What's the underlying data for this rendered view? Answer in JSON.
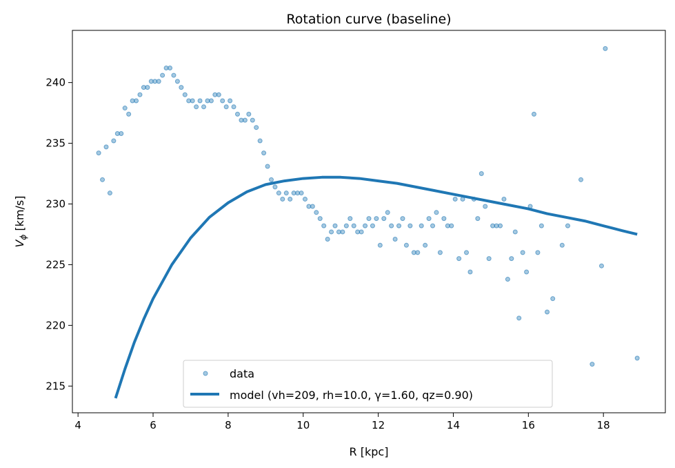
{
  "chart_data": {
    "type": "scatter",
    "title": "Rotation curve (baseline)",
    "xlabel": "R [kpc]",
    "ylabel_main": "V",
    "ylabel_sub": "ϕ",
    "ylabel_unit": " [km/s]",
    "xlim": [
      3.85,
      19.65
    ],
    "ylim": [
      212.8,
      244.3
    ],
    "xticks": [
      4,
      6,
      8,
      10,
      12,
      14,
      16,
      18
    ],
    "yticks": [
      215,
      220,
      225,
      230,
      235,
      240
    ],
    "grid": false,
    "legend_position": "lower center",
    "series": [
      {
        "name": "data",
        "kind": "points",
        "color": "#1f77b4",
        "x": [
          4.55,
          4.65,
          4.75,
          4.85,
          4.95,
          5.05,
          5.15,
          5.25,
          5.35,
          5.45,
          5.55,
          5.65,
          5.75,
          5.85,
          5.95,
          6.05,
          6.15,
          6.25,
          6.35,
          6.45,
          6.55,
          6.65,
          6.75,
          6.85,
          6.95,
          7.05,
          7.15,
          7.25,
          7.35,
          7.45,
          7.55,
          7.65,
          7.75,
          7.85,
          7.95,
          8.05,
          8.15,
          8.25,
          8.35,
          8.45,
          8.55,
          8.65,
          8.75,
          8.85,
          8.95,
          9.05,
          9.15,
          9.25,
          9.35,
          9.45,
          9.55,
          9.65,
          9.75,
          9.85,
          9.95,
          10.05,
          10.15,
          10.25,
          10.35,
          10.45,
          10.55,
          10.65,
          10.75,
          10.85,
          10.95,
          11.05,
          11.15,
          11.25,
          11.35,
          11.45,
          11.55,
          11.65,
          11.75,
          11.85,
          11.95,
          12.05,
          12.15,
          12.25,
          12.35,
          12.45,
          12.55,
          12.65,
          12.75,
          12.85,
          12.95,
          13.05,
          13.15,
          13.25,
          13.35,
          13.45,
          13.55,
          13.65,
          13.75,
          13.85,
          13.95,
          14.05,
          14.15,
          14.25,
          14.35,
          14.45,
          14.55,
          14.65,
          14.75,
          14.85,
          14.95,
          15.05,
          15.15,
          15.25,
          15.35,
          15.45,
          15.55,
          15.65,
          15.75,
          15.85,
          15.95,
          16.05,
          16.15,
          16.25,
          16.35,
          16.5,
          16.65,
          16.9,
          17.05,
          17.4,
          17.7,
          17.95,
          18.05,
          18.9
        ],
        "y": [
          234.2,
          232.0,
          234.7,
          230.9,
          235.2,
          235.8,
          235.8,
          237.9,
          237.4,
          238.5,
          238.5,
          239.0,
          239.6,
          239.6,
          240.1,
          240.1,
          240.1,
          240.6,
          241.2,
          241.2,
          240.6,
          240.1,
          239.6,
          239.0,
          238.5,
          238.5,
          238.0,
          238.5,
          238.0,
          238.5,
          238.5,
          239.0,
          239.0,
          238.5,
          238.0,
          238.5,
          238.0,
          237.4,
          236.9,
          236.9,
          237.4,
          236.9,
          236.3,
          235.2,
          234.2,
          233.1,
          232.0,
          231.4,
          230.9,
          230.4,
          230.9,
          230.4,
          230.9,
          230.9,
          230.9,
          230.4,
          229.8,
          229.8,
          229.3,
          228.8,
          228.2,
          227.1,
          227.7,
          228.2,
          227.7,
          227.7,
          228.2,
          228.8,
          228.2,
          227.7,
          227.7,
          228.2,
          228.8,
          228.2,
          228.8,
          226.6,
          228.8,
          229.3,
          228.2,
          227.1,
          228.2,
          228.8,
          226.6,
          228.2,
          226.0,
          226.0,
          228.2,
          226.6,
          228.8,
          228.2,
          229.3,
          226.0,
          228.8,
          228.2,
          228.2,
          230.4,
          225.5,
          230.4,
          226.0,
          224.4,
          230.4,
          228.8,
          232.5,
          229.8,
          225.5,
          228.2,
          228.2,
          228.2,
          230.4,
          223.8,
          225.5,
          227.7,
          220.6,
          226.0,
          224.4,
          229.8,
          237.4,
          226.0,
          228.2,
          221.1,
          222.2,
          226.6,
          228.2,
          232.0,
          216.8,
          224.9,
          242.8,
          217.3
        ]
      },
      {
        "name": "model (vh=209, rh=10.0, γ=1.60, qz=0.90)",
        "kind": "line",
        "color": "#1f77b4",
        "x": [
          5.0,
          5.25,
          5.5,
          5.75,
          6.0,
          6.5,
          7.0,
          7.5,
          8.0,
          8.5,
          9.0,
          9.5,
          10.0,
          10.5,
          11.0,
          11.5,
          12.0,
          12.5,
          13.0,
          13.5,
          14.0,
          14.5,
          15.0,
          15.5,
          16.0,
          16.5,
          17.0,
          17.5,
          18.0,
          18.5,
          18.9
        ],
        "y": [
          214.0,
          216.4,
          218.6,
          220.5,
          222.2,
          225.0,
          227.2,
          228.9,
          230.1,
          231.0,
          231.6,
          231.9,
          232.1,
          232.2,
          232.2,
          232.1,
          231.9,
          231.7,
          231.4,
          231.1,
          230.8,
          230.5,
          230.2,
          229.9,
          229.6,
          229.2,
          228.9,
          228.6,
          228.2,
          227.8,
          227.5
        ]
      }
    ]
  }
}
